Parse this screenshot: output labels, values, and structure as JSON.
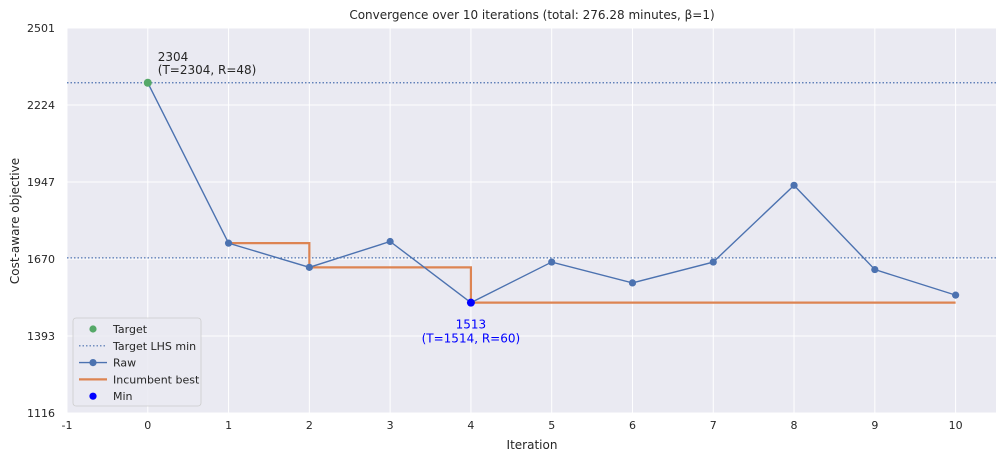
{
  "chart_data": {
    "type": "line",
    "title": "Convergence over 10 iterations (total: 276.28 minutes, β=1)",
    "xlabel": "Iteration",
    "ylabel": "Cost-aware objective",
    "xlim": [
      -1,
      10.5
    ],
    "ylim": [
      1116,
      2501
    ],
    "xticks": [
      -1,
      0,
      1,
      2,
      3,
      4,
      5,
      6,
      7,
      8,
      9,
      10
    ],
    "yticks": [
      1116,
      1393,
      1670,
      1947,
      2224,
      2501
    ],
    "grid": true,
    "legend_position": "lower-left",
    "target": {
      "label": "Target",
      "x": 0,
      "y": 2304,
      "color": "#55a868"
    },
    "target_lhs_min_lines": {
      "label": "Target LHS min",
      "y": [
        2304,
        1674
      ],
      "color": "#4c72b0"
    },
    "series": [
      {
        "name": "Raw",
        "color": "#4c72b0",
        "x": [
          0,
          1,
          2,
          3,
          4,
          5,
          6,
          7,
          8,
          9,
          10
        ],
        "y": [
          2304,
          1727,
          1640,
          1733,
          1513,
          1659,
          1584,
          1659,
          1935,
          1632,
          1540
        ]
      },
      {
        "name": "Incumbent best",
        "color": "#dd8452",
        "step": "post",
        "x": [
          1,
          2,
          3,
          4,
          5,
          6,
          7,
          8,
          9,
          10
        ],
        "y": [
          1727,
          1640,
          1640,
          1513,
          1513,
          1513,
          1513,
          1513,
          1513,
          1513
        ]
      }
    ],
    "min_point": {
      "label": "Min",
      "x": 4,
      "y": 1513,
      "color": "#0000ff"
    },
    "annotations": [
      {
        "id": "target",
        "line1": "2304",
        "line2": "(T=2304, R=48)",
        "color": "#262626"
      },
      {
        "id": "min",
        "line1": "1513",
        "line2": "(T=1514, R=60)",
        "color": "#0000ff"
      }
    ]
  }
}
